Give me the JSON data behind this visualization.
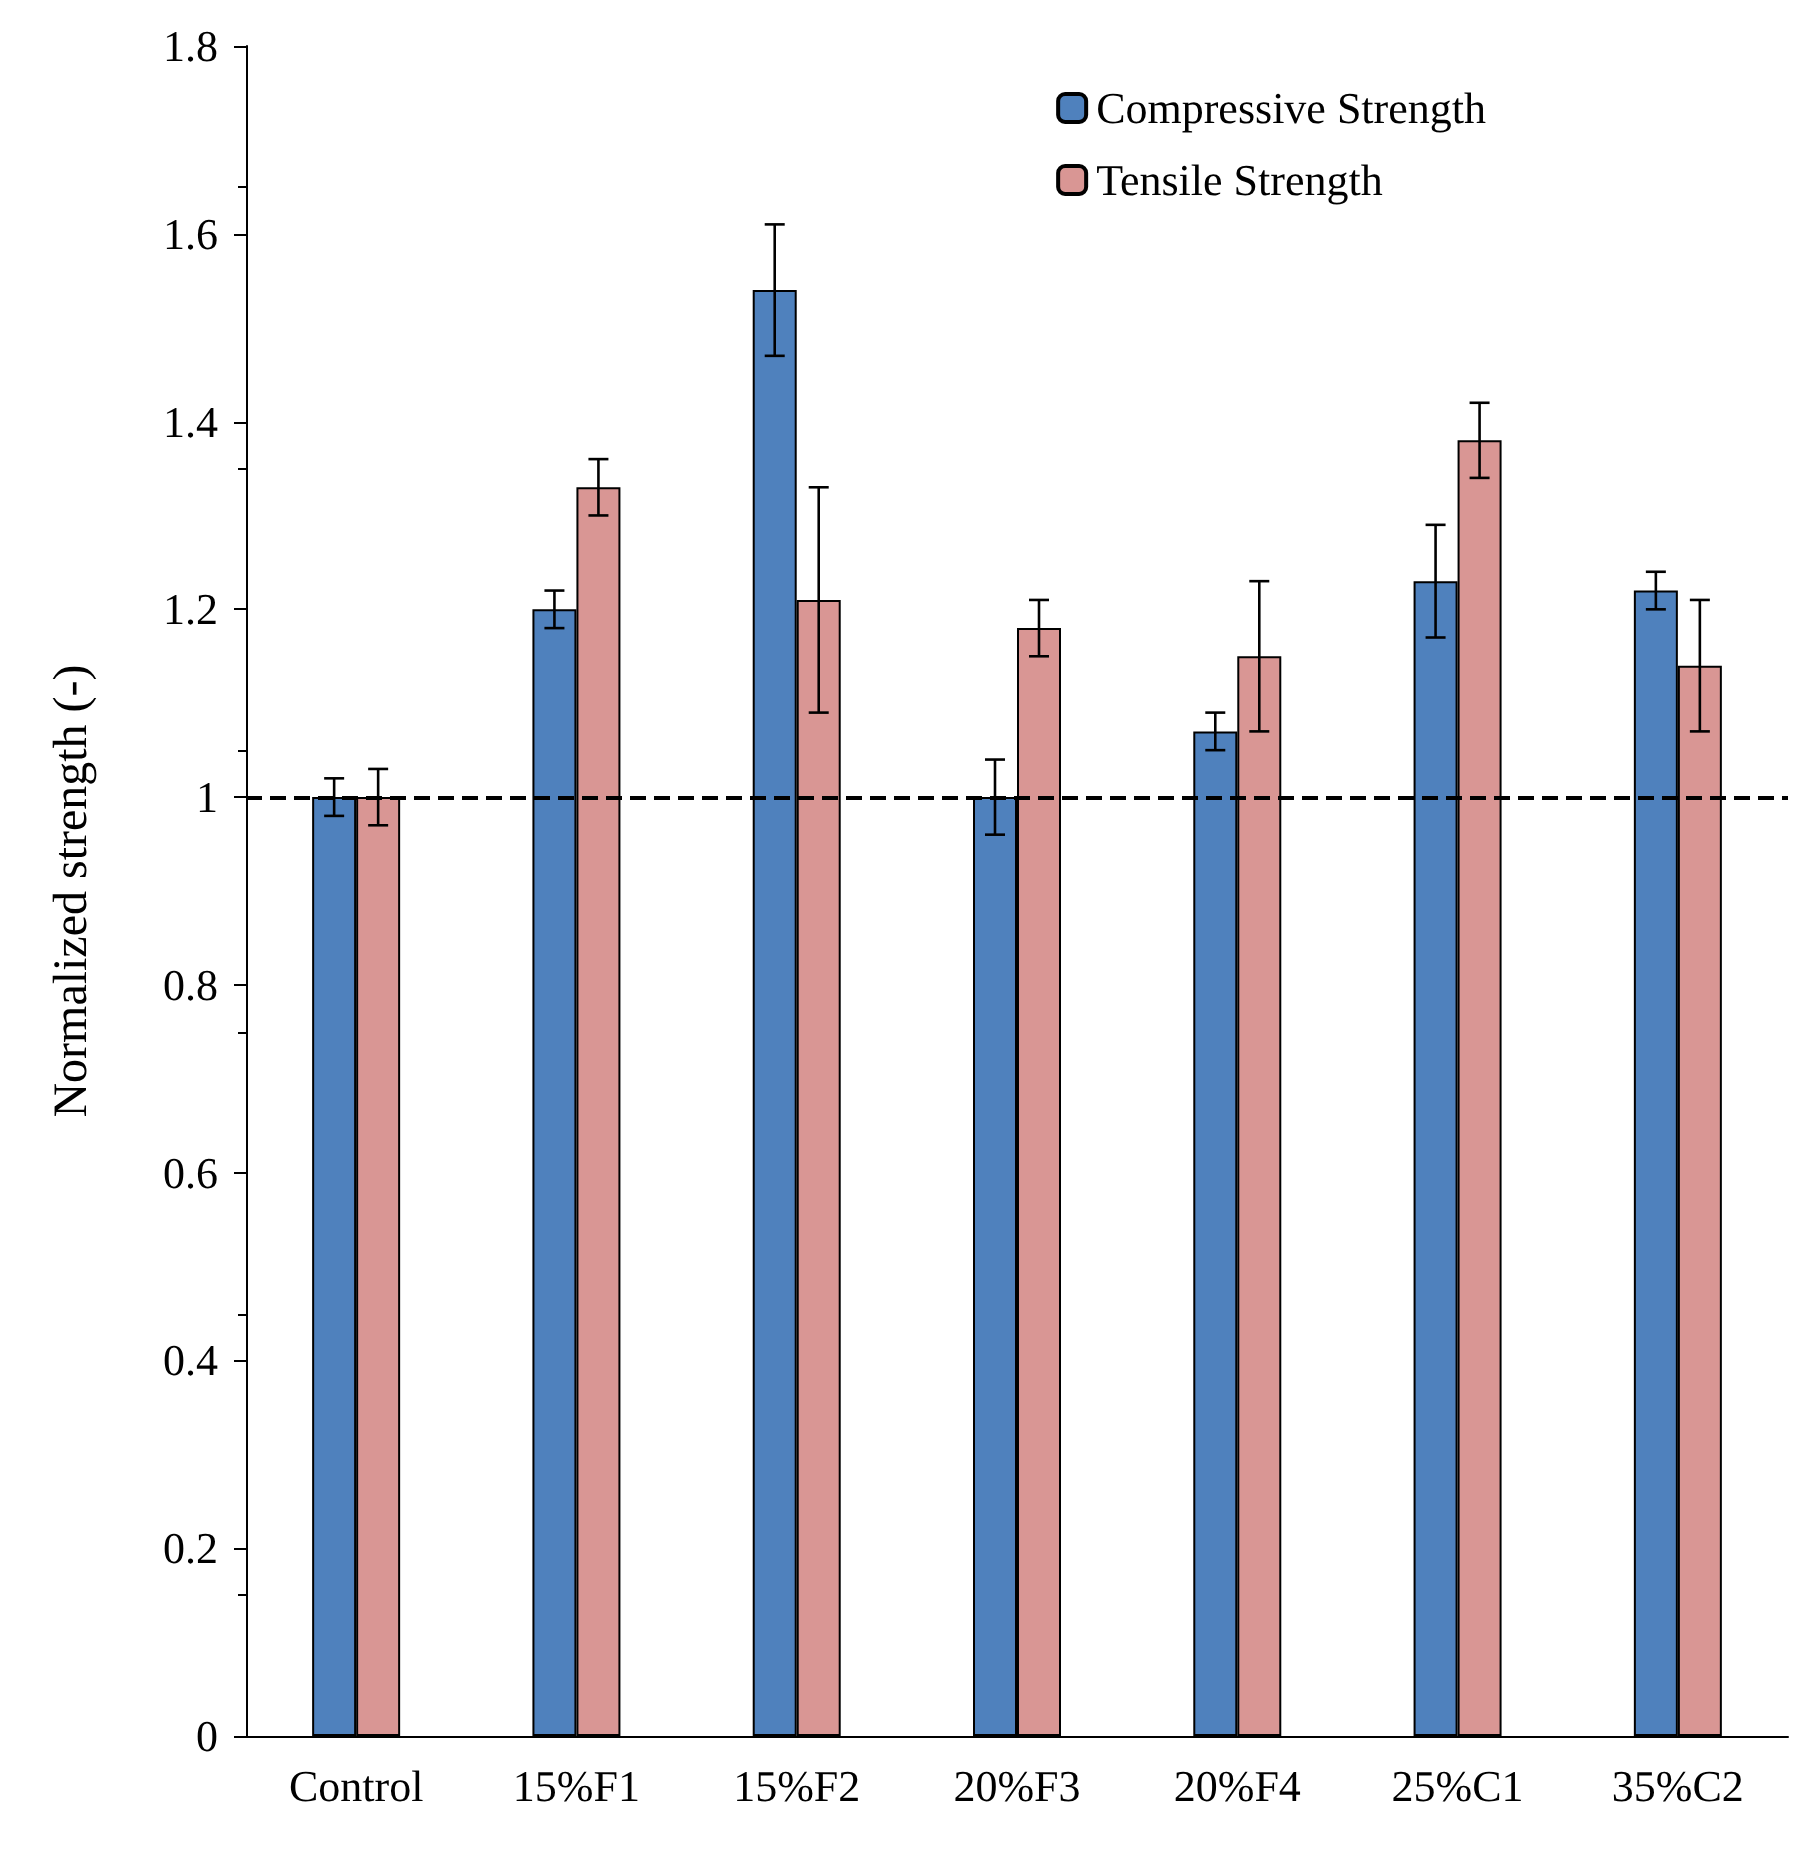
{
  "chart_data": {
    "type": "bar",
    "ylabel": "Normalized strength (-)",
    "categories": [
      "Control",
      "15%F1",
      "15%F2",
      "20%F3",
      "20%F4",
      "25%C1",
      "35%C2"
    ],
    "series": [
      {
        "name": "Compressive Strength",
        "color": "#4f81bd",
        "values": [
          1.0,
          1.2,
          1.54,
          1.0,
          1.07,
          1.23,
          1.22
        ],
        "errors": [
          0.02,
          0.02,
          0.07,
          0.04,
          0.02,
          0.06,
          0.02
        ]
      },
      {
        "name": "Tensile Strength",
        "color": "#d99694",
        "values": [
          1.0,
          1.33,
          1.21,
          1.18,
          1.15,
          1.38,
          1.14
        ],
        "errors": [
          0.03,
          0.03,
          0.12,
          0.03,
          0.08,
          0.04,
          0.07
        ]
      }
    ],
    "ylim": [
      0,
      1.8
    ],
    "yticks": [
      0,
      0.2,
      0.4,
      0.6,
      0.8,
      1,
      1.2,
      1.4,
      1.6,
      1.8
    ],
    "ref_lines": [
      {
        "axis": "y",
        "value": 1,
        "color": "#000000",
        "line_style": "dashed"
      }
    ],
    "grid": false,
    "legend": "top right"
  }
}
